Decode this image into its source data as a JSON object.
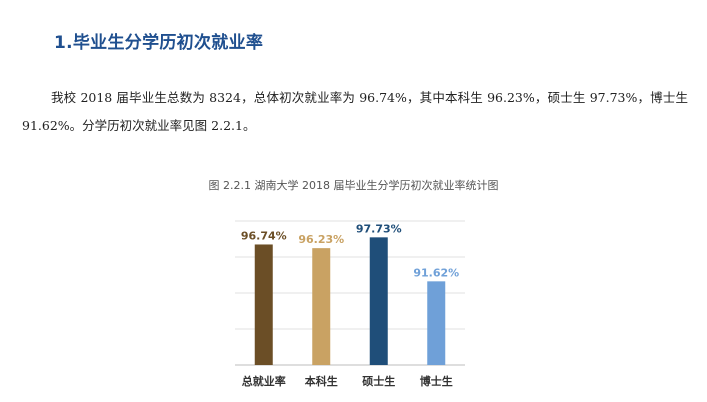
{
  "heading": "1.毕业生分学历初次就业率",
  "paragraph": "我校 2018 届毕业生总数为 8324，总体初次就业率为 96.74%，其中本科生 96.23%，硕士生 97.73%，博士生 91.62%。分学历初次就业率见图 2.2.1。",
  "figure_caption": "图 2.2.1  湖南大学 2018 届毕业生分学历初次就业率统计图",
  "chart_data": {
    "type": "bar",
    "title": "",
    "xlabel": "",
    "ylabel": "",
    "categories": [
      "总就业率",
      "本科生",
      "硕士生",
      "博士生"
    ],
    "values": [
      96.74,
      96.23,
      97.73,
      91.62
    ],
    "data_labels": [
      "96.74%",
      "96.23%",
      "97.73%",
      "91.62%"
    ],
    "ylim": [
      80,
      100
    ],
    "grid": true,
    "legend": "none",
    "colors": [
      "#6b4e26",
      "#c9a263",
      "#1f4e79",
      "#6fa0d8"
    ]
  }
}
